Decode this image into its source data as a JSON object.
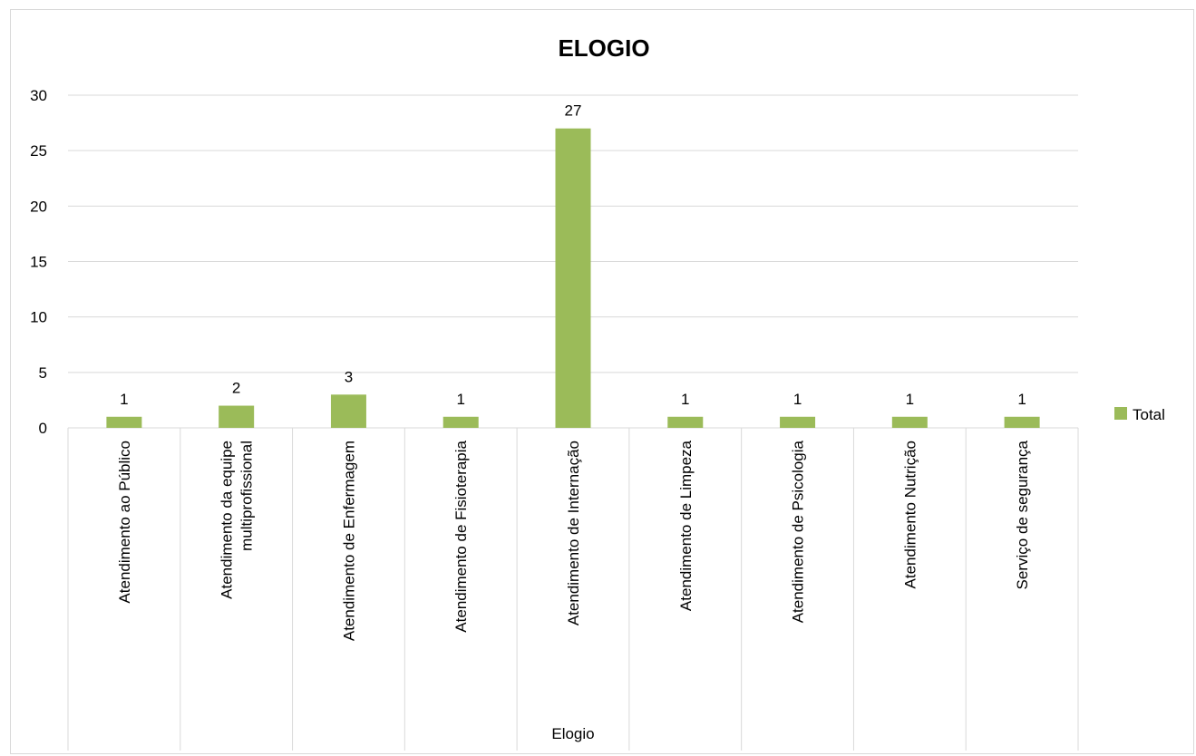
{
  "chart_data": {
    "type": "bar",
    "title": "ELOGIO",
    "xlabel": "Elogio",
    "ylabel": "",
    "ylim": [
      0,
      30
    ],
    "yticks": [
      0,
      5,
      10,
      15,
      20,
      25,
      30
    ],
    "grid": true,
    "legend_position": "right",
    "categories": [
      [
        "Atendimento ao Público"
      ],
      [
        "Atendimento da equipe",
        "multiprofissional"
      ],
      [
        "Atendimento de Enfermagem"
      ],
      [
        "Atendimento de Fisioterapia"
      ],
      [
        "Atendimento de Internação"
      ],
      [
        "Atendimento de Limpeza"
      ],
      [
        "Atendimento de Psicologia"
      ],
      [
        "Atendimento Nutrição"
      ],
      [
        "Serviço de segurança"
      ]
    ],
    "series": [
      {
        "name": "Total",
        "color": "#9bbb59",
        "values": [
          1,
          2,
          3,
          1,
          27,
          1,
          1,
          1,
          1
        ]
      }
    ],
    "data_labels": true
  }
}
